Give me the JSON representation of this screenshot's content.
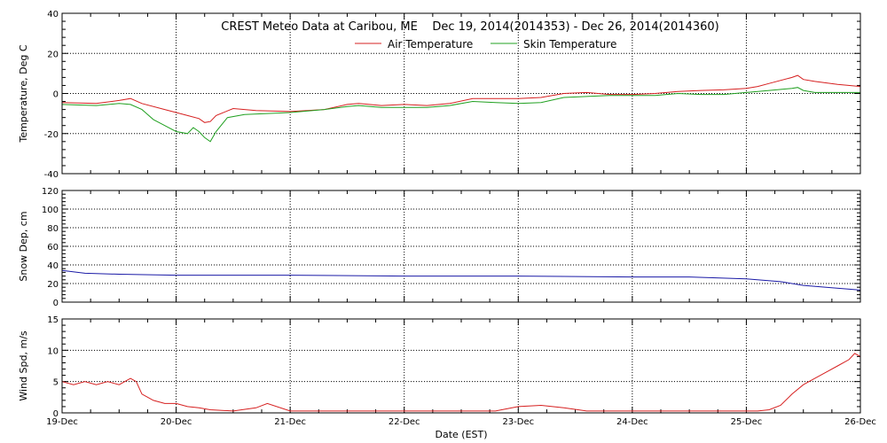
{
  "chart_data": {
    "title": "CREST Meteo Data at Caribou, ME    Dec 19, 2014(2014353) - Dec 26, 2014(2014360)",
    "xlabel": "Date (EST)",
    "x_ticks": [
      "19-Dec",
      "20-Dec",
      "21-Dec",
      "22-Dec",
      "23-Dec",
      "24-Dec",
      "25-Dec",
      "26-Dec"
    ],
    "x_range_days": [
      0,
      7
    ],
    "grid": true,
    "panels": [
      {
        "type": "line",
        "ylabel": "Temperature, Deg C",
        "ylim": [
          -40,
          40
        ],
        "y_ticks": [
          -40,
          -20,
          0,
          20,
          40
        ],
        "legend_placement": "top-center",
        "series": [
          {
            "name": "Air Temperature",
            "color": "#d62020",
            "x": [
              0,
              0.3,
              0.5,
              0.6,
              0.7,
              0.9,
              1.0,
              1.1,
              1.2,
              1.25,
              1.3,
              1.35,
              1.5,
              1.7,
              2.0,
              2.3,
              2.5,
              2.6,
              2.8,
              3.0,
              3.2,
              3.4,
              3.6,
              3.8,
              4.0,
              4.2,
              4.4,
              4.6,
              4.8,
              5.0,
              5.2,
              5.4,
              5.6,
              5.8,
              6.0,
              6.1,
              6.2,
              6.4,
              6.45,
              6.5,
              6.6,
              6.8,
              7.0
            ],
            "y": [
              -4.5,
              -5,
              -3.5,
              -2.5,
              -5,
              -8,
              -9.5,
              -11,
              -12.5,
              -14.5,
              -14,
              -11,
              -7.5,
              -8.5,
              -9,
              -8,
              -5.5,
              -5,
              -6,
              -5.5,
              -6,
              -5,
              -2.5,
              -2.5,
              -2.5,
              -2,
              0,
              0.5,
              -0.5,
              -0.5,
              0,
              1,
              1.5,
              1.8,
              2.5,
              3.5,
              5,
              8,
              9,
              7,
              6,
              4.5,
              3.5
            ]
          },
          {
            "name": "Skin Temperature",
            "color": "#20a020",
            "x": [
              0,
              0.3,
              0.5,
              0.6,
              0.7,
              0.8,
              0.9,
              1.0,
              1.1,
              1.15,
              1.2,
              1.25,
              1.3,
              1.35,
              1.45,
              1.6,
              2.0,
              2.3,
              2.5,
              2.6,
              2.8,
              3.0,
              3.2,
              3.4,
              3.6,
              3.8,
              4.0,
              4.2,
              4.4,
              4.6,
              4.8,
              5.0,
              5.2,
              5.4,
              5.6,
              5.8,
              6.0,
              6.2,
              6.4,
              6.45,
              6.5,
              6.6,
              7.0
            ],
            "y": [
              -5.5,
              -6,
              -5,
              -5.5,
              -8,
              -13,
              -16,
              -19,
              -20,
              -17,
              -19,
              -22,
              -24,
              -19,
              -12,
              -10.5,
              -9.5,
              -8,
              -6.5,
              -6,
              -7,
              -7,
              -7,
              -6,
              -4,
              -4.5,
              -5,
              -4.5,
              -2,
              -1.5,
              -1,
              -1,
              -1,
              0,
              -0.5,
              -0.5,
              0.5,
              1.5,
              2.5,
              3,
              1.5,
              0.5,
              0.5
            ]
          }
        ]
      },
      {
        "type": "line",
        "ylabel": "Snow Dep, cm",
        "ylim": [
          0,
          120
        ],
        "y_ticks": [
          0,
          20,
          40,
          60,
          80,
          100,
          120
        ],
        "series": [
          {
            "name": "",
            "color": "#1a1aa6",
            "x": [
              0,
              0.2,
              0.5,
              1.0,
              2.0,
              3.0,
              4.0,
              5.0,
              5.5,
              6.0,
              6.3,
              6.5,
              6.7,
              7.0
            ],
            "y": [
              34,
              31,
              30,
              29,
              29,
              28,
              28,
              27,
              27,
              25,
              22,
              18,
              16,
              13
            ]
          }
        ]
      },
      {
        "type": "line",
        "ylabel": "Wind Spd, m/s",
        "ylim": [
          0,
          15
        ],
        "y_ticks": [
          0,
          5,
          10,
          15
        ],
        "series": [
          {
            "name": "",
            "color": "#d62020",
            "x": [
              0,
              0.1,
              0.2,
              0.3,
              0.4,
              0.5,
              0.6,
              0.65,
              0.7,
              0.75,
              0.8,
              0.9,
              1.0,
              1.1,
              1.2,
              1.3,
              1.5,
              1.7,
              1.8,
              2.0,
              2.3,
              2.5,
              2.7,
              3.0,
              3.3,
              3.6,
              3.8,
              4.0,
              4.2,
              4.4,
              4.6,
              4.8,
              5.0,
              5.2,
              5.5,
              5.8,
              6.0,
              6.1,
              6.2,
              6.3,
              6.4,
              6.5,
              6.6,
              6.7,
              6.8,
              6.9,
              6.95,
              7.0
            ],
            "y": [
              5,
              4.5,
              5,
              4.5,
              5,
              4.5,
              5.5,
              5,
              3,
              2.5,
              2,
              1.5,
              1.5,
              1,
              0.8,
              0.5,
              0.3,
              0.8,
              1.5,
              0.3,
              0.3,
              0.3,
              0.3,
              0.3,
              0.3,
              0.3,
              0.3,
              1,
              1.2,
              0.8,
              0.3,
              0.3,
              0.3,
              0.3,
              0.3,
              0.3,
              0.3,
              0.3,
              0.5,
              1.2,
              3,
              4.5,
              5.5,
              6.5,
              7.5,
              8.5,
              9.5,
              9
            ]
          }
        ]
      }
    ]
  }
}
